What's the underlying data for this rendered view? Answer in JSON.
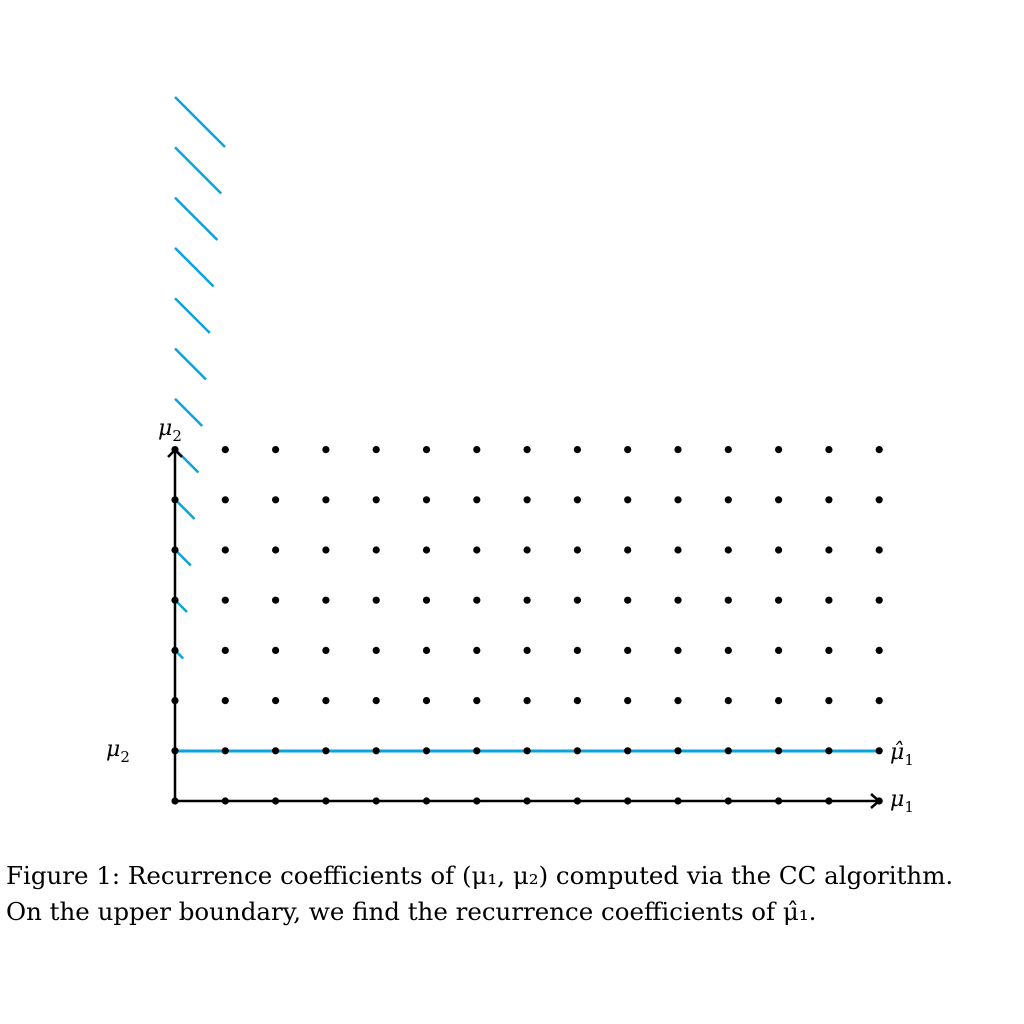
{
  "figure": {
    "accent_color": "#0aa3dc",
    "axis_color": "#000000",
    "x_axis_label": "μ",
    "x_axis_label_sub": "1",
    "y_axis_label": "μ",
    "y_axis_label_sub": "2",
    "left_row_label": "μ",
    "left_row_label_sub": "2",
    "highlight_row_label": "μ̂",
    "highlight_row_label_sub": "1",
    "grid_columns": 15,
    "grid_rows": 8,
    "highlighted_row_index": 1,
    "hatch_count": 12
  },
  "caption": {
    "line1": "Figure 1:  Recurrence coefficients of (μ₁, μ₂) computed via the CC algorithm.",
    "line2": "On the upper boundary, we find the recurrence coefficients of μ̂₁."
  }
}
